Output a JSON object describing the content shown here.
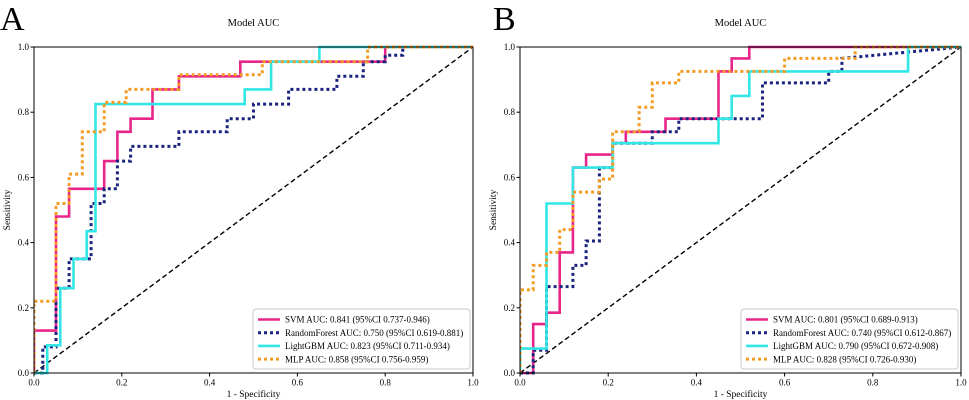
{
  "chart_data": [
    {
      "type": "line",
      "panel_label": "A",
      "title": "Model AUC",
      "xlabel": "1 - Specificity",
      "ylabel": "Sensitivity",
      "xlim": [
        0,
        1
      ],
      "ylim": [
        0,
        1
      ],
      "xticks": [
        "0.0",
        "0.2",
        "0.4",
        "0.6",
        "0.8",
        "1.0"
      ],
      "yticks": [
        "0.0",
        "0.2",
        "0.4",
        "0.6",
        "0.8",
        "1.0"
      ],
      "legend_position": "bottom-right",
      "diagonal": "chance line (black dashed)",
      "series": [
        {
          "name": "SVM",
          "legend": "SVM AUC: 0.841 (95%CI 0.737-0.946)",
          "color": "#e8268a",
          "dash": "solid",
          "x": [
            0,
            0,
            0.05,
            0.05,
            0.08,
            0.08,
            0.13,
            0.13,
            0.16,
            0.16,
            0.19,
            0.19,
            0.22,
            0.22,
            0.27,
            0.27,
            0.33,
            0.33,
            0.47,
            0.47,
            0.65,
            0.65,
            0.8,
            0.8,
            1.0
          ],
          "y": [
            0,
            0.13,
            0.13,
            0.48,
            0.48,
            0.565,
            0.565,
            0.565,
            0.565,
            0.65,
            0.65,
            0.74,
            0.74,
            0.78,
            0.78,
            0.87,
            0.87,
            0.91,
            0.91,
            0.955,
            0.955,
            0.955,
            0.955,
            1.0,
            1.0
          ]
        },
        {
          "name": "RandomForest",
          "legend": "RandomForest AUC: 0.750 (95%CI 0.619-0.881)",
          "color": "#1a237e",
          "dash": "dotted",
          "x": [
            0,
            0.02,
            0.02,
            0.05,
            0.05,
            0.08,
            0.08,
            0.13,
            0.13,
            0.16,
            0.16,
            0.19,
            0.19,
            0.22,
            0.22,
            0.33,
            0.33,
            0.44,
            0.44,
            0.5,
            0.5,
            0.58,
            0.58,
            0.69,
            0.69,
            0.75,
            0.75,
            0.8,
            0.8,
            0.84,
            0.84,
            1.0
          ],
          "y": [
            0,
            0,
            0.08,
            0.08,
            0.26,
            0.26,
            0.35,
            0.35,
            0.52,
            0.52,
            0.565,
            0.565,
            0.65,
            0.65,
            0.695,
            0.695,
            0.74,
            0.74,
            0.78,
            0.78,
            0.825,
            0.825,
            0.87,
            0.87,
            0.91,
            0.91,
            0.955,
            0.955,
            0.975,
            0.975,
            1.0,
            1.0
          ]
        },
        {
          "name": "LightGBM",
          "legend": "LightGBM AUC: 0.823 (95%CI 0.711-0.934)",
          "color": "#33e6e6",
          "dash": "solid",
          "x": [
            0,
            0.03,
            0.03,
            0.06,
            0.06,
            0.09,
            0.09,
            0.12,
            0.12,
            0.14,
            0.14,
            0.48,
            0.48,
            0.54,
            0.54,
            0.65,
            0.65,
            1.0
          ],
          "y": [
            0,
            0,
            0.085,
            0.085,
            0.26,
            0.26,
            0.35,
            0.35,
            0.435,
            0.435,
            0.825,
            0.825,
            0.87,
            0.87,
            0.955,
            0.955,
            1.0,
            1.0
          ]
        },
        {
          "name": "MLP",
          "legend": "MLP AUC: 0.858 (95%CI 0.756-0.959)",
          "color": "#f39c24",
          "dash": "dotted",
          "x": [
            0,
            0,
            0.05,
            0.05,
            0.08,
            0.08,
            0.11,
            0.11,
            0.16,
            0.16,
            0.21,
            0.21,
            0.27,
            0.27,
            0.33,
            0.33,
            0.52,
            0.52,
            0.76,
            0.76,
            1.0
          ],
          "y": [
            0,
            0.22,
            0.22,
            0.52,
            0.52,
            0.61,
            0.61,
            0.74,
            0.74,
            0.83,
            0.83,
            0.87,
            0.87,
            0.87,
            0.87,
            0.915,
            0.915,
            0.955,
            0.955,
            1.0,
            1.0
          ]
        }
      ]
    },
    {
      "type": "line",
      "panel_label": "B",
      "title": "Model AUC",
      "xlabel": "1 - Specificity",
      "ylabel": "Sensitivity",
      "xlim": [
        0,
        1
      ],
      "ylim": [
        0,
        1
      ],
      "xticks": [
        "0.0",
        "0.2",
        "0.4",
        "0.6",
        "0.8",
        "1.0"
      ],
      "yticks": [
        "0.0",
        "0.2",
        "0.4",
        "0.6",
        "0.8",
        "1.0"
      ],
      "legend_position": "bottom-right",
      "diagonal": "chance line (black dashed)",
      "series": [
        {
          "name": "SVM",
          "legend": "SVM AUC: 0.801 (95%CI 0.689-0.913)",
          "color": "#e8268a",
          "dash": "solid",
          "x": [
            0,
            0.03,
            0.03,
            0.06,
            0.06,
            0.09,
            0.09,
            0.12,
            0.12,
            0.15,
            0.15,
            0.18,
            0.18,
            0.21,
            0.21,
            0.24,
            0.24,
            0.33,
            0.33,
            0.36,
            0.36,
            0.45,
            0.45,
            0.48,
            0.48,
            0.52,
            0.52,
            1.0
          ],
          "y": [
            0,
            0,
            0.15,
            0.15,
            0.185,
            0.185,
            0.37,
            0.37,
            0.63,
            0.63,
            0.67,
            0.67,
            0.67,
            0.67,
            0.705,
            0.705,
            0.74,
            0.74,
            0.78,
            0.78,
            0.78,
            0.78,
            0.925,
            0.925,
            0.965,
            0.965,
            1.0,
            1.0
          ]
        },
        {
          "name": "RandomForest",
          "legend": "RandomForest AUC: 0.740 (95%CI 0.612-0.867)",
          "color": "#1a237e",
          "dash": "dotted",
          "x": [
            0,
            0.03,
            0.03,
            0.06,
            0.06,
            0.12,
            0.12,
            0.15,
            0.15,
            0.18,
            0.18,
            0.21,
            0.21,
            0.3,
            0.3,
            0.36,
            0.36,
            0.45,
            0.45,
            0.55,
            0.55,
            0.7,
            0.7,
            0.73,
            0.73,
            1.0
          ],
          "y": [
            0,
            0,
            0.07,
            0.07,
            0.265,
            0.265,
            0.33,
            0.33,
            0.405,
            0.405,
            0.63,
            0.63,
            0.705,
            0.705,
            0.74,
            0.74,
            0.78,
            0.78,
            0.78,
            0.78,
            0.89,
            0.89,
            0.925,
            0.925,
            0.965,
            1.0
          ]
        },
        {
          "name": "LightGBM",
          "legend": "LightGBM AUC: 0.790 (95%CI 0.672-0.908)",
          "color": "#33e6e6",
          "dash": "solid",
          "x": [
            0,
            0,
            0.06,
            0.06,
            0.12,
            0.12,
            0.21,
            0.21,
            0.45,
            0.45,
            0.48,
            0.48,
            0.52,
            0.52,
            0.88,
            0.88,
            1.0
          ],
          "y": [
            0,
            0.075,
            0.075,
            0.52,
            0.52,
            0.63,
            0.63,
            0.705,
            0.705,
            0.78,
            0.78,
            0.85,
            0.85,
            0.925,
            0.925,
            1.0,
            1.0
          ]
        },
        {
          "name": "MLP",
          "legend": "MLP AUC: 0.828 (95%CI 0.726-0.930)",
          "color": "#f39c24",
          "dash": "dotted",
          "x": [
            0,
            0,
            0.03,
            0.03,
            0.06,
            0.06,
            0.09,
            0.09,
            0.12,
            0.12,
            0.18,
            0.18,
            0.21,
            0.21,
            0.27,
            0.27,
            0.3,
            0.3,
            0.36,
            0.36,
            0.6,
            0.6,
            0.76,
            0.76,
            1.0
          ],
          "y": [
            0,
            0.255,
            0.255,
            0.33,
            0.33,
            0.37,
            0.37,
            0.44,
            0.44,
            0.555,
            0.555,
            0.595,
            0.595,
            0.74,
            0.74,
            0.815,
            0.815,
            0.89,
            0.89,
            0.925,
            0.925,
            0.965,
            0.965,
            1.0,
            1.0
          ]
        }
      ]
    }
  ]
}
